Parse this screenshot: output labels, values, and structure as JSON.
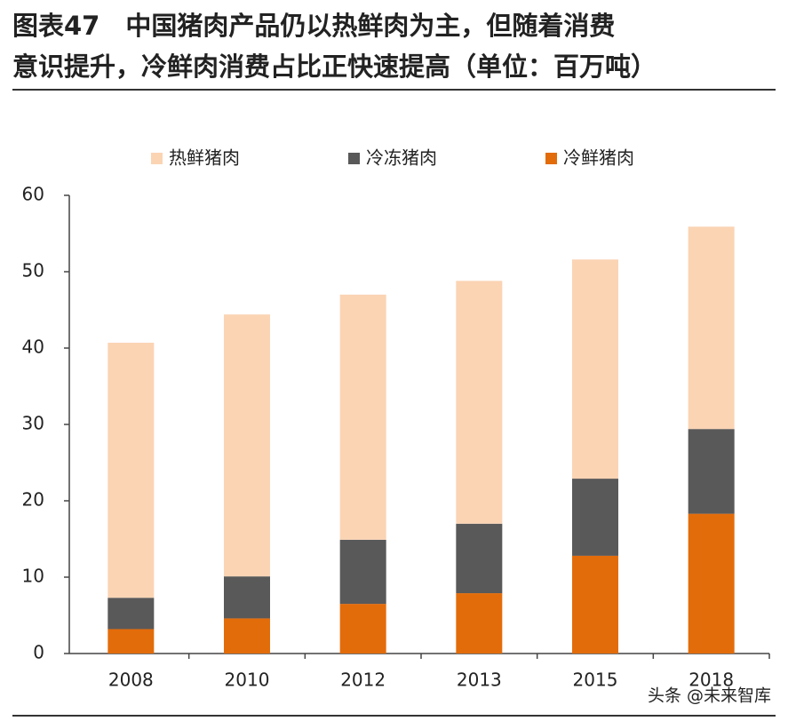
{
  "chart_data": {
    "type": "stacked-bar",
    "title": [
      "图表47　中国猪肉产品仍以热鲜肉为主，但随着消费",
      "意识提升，冷鲜肉消费占比正快速提高（单位：百万吨）"
    ],
    "categories": [
      "2008",
      "2010",
      "2012",
      "2013",
      "2015",
      "2018"
    ],
    "series": [
      {
        "name": "热鲜猪肉",
        "color": "#fbd4b4",
        "values": [
          33.4,
          34.3,
          32.1,
          31.8,
          28.7,
          26.5
        ]
      },
      {
        "name": "冷冻猪肉",
        "color": "#595959",
        "values": [
          4.1,
          5.5,
          8.4,
          9.1,
          10.1,
          11.1
        ]
      },
      {
        "name": "冷鲜猪肉",
        "color": "#e36c0a",
        "values": [
          3.2,
          4.6,
          6.5,
          7.9,
          12.8,
          18.3
        ]
      }
    ],
    "ylim": [
      0,
      60
    ],
    "yticks": [
      0,
      10,
      20,
      30,
      40,
      50,
      60
    ],
    "legend": "top",
    "watermark": "头条 @未来智库"
  }
}
